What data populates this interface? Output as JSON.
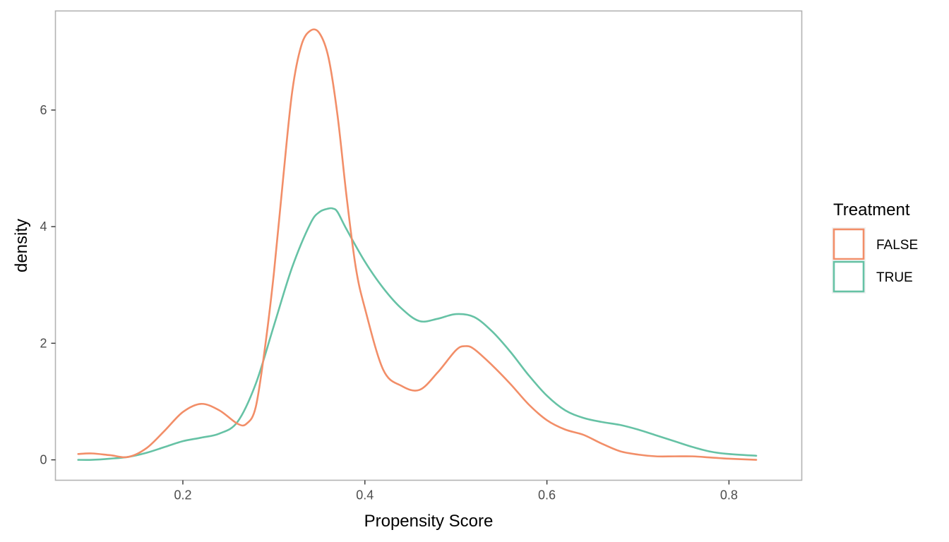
{
  "chart_data": {
    "type": "line",
    "xlabel": "Propensity Score",
    "ylabel": "density",
    "xlim": [
      0.06,
      0.88
    ],
    "ylim": [
      -0.35,
      7.7
    ],
    "x_ticks": [
      0.2,
      0.4,
      0.6,
      0.8
    ],
    "x_tick_labels": [
      "0.2",
      "0.4",
      "0.6",
      "0.8"
    ],
    "y_ticks": [
      0,
      2,
      4,
      6
    ],
    "y_tick_labels": [
      "0",
      "2",
      "4",
      "6"
    ],
    "grid": false,
    "legend": {
      "title": "Treatment",
      "position": "right"
    },
    "series": [
      {
        "name": "FALSE",
        "color": "#F28E68",
        "x": [
          0.085,
          0.1,
          0.12,
          0.14,
          0.16,
          0.18,
          0.2,
          0.22,
          0.24,
          0.26,
          0.27,
          0.28,
          0.29,
          0.3,
          0.31,
          0.32,
          0.33,
          0.34,
          0.35,
          0.36,
          0.37,
          0.38,
          0.39,
          0.4,
          0.42,
          0.44,
          0.46,
          0.48,
          0.5,
          0.51,
          0.52,
          0.54,
          0.56,
          0.58,
          0.6,
          0.62,
          0.64,
          0.66,
          0.68,
          0.7,
          0.72,
          0.74,
          0.76,
          0.78,
          0.8,
          0.83
        ],
        "y": [
          0.1,
          0.11,
          0.08,
          0.05,
          0.2,
          0.5,
          0.82,
          0.96,
          0.85,
          0.62,
          0.62,
          0.9,
          1.9,
          3.2,
          4.8,
          6.3,
          7.1,
          7.36,
          7.32,
          6.9,
          5.9,
          4.5,
          3.3,
          2.6,
          1.55,
          1.27,
          1.2,
          1.5,
          1.88,
          1.95,
          1.9,
          1.62,
          1.3,
          0.95,
          0.68,
          0.52,
          0.43,
          0.28,
          0.15,
          0.09,
          0.06,
          0.06,
          0.06,
          0.04,
          0.02,
          0.0
        ]
      },
      {
        "name": "TRUE",
        "color": "#66C2A5",
        "x": [
          0.085,
          0.1,
          0.12,
          0.14,
          0.16,
          0.18,
          0.2,
          0.22,
          0.24,
          0.26,
          0.28,
          0.3,
          0.32,
          0.34,
          0.35,
          0.36,
          0.365,
          0.37,
          0.38,
          0.4,
          0.42,
          0.44,
          0.46,
          0.48,
          0.5,
          0.52,
          0.54,
          0.56,
          0.58,
          0.6,
          0.62,
          0.64,
          0.66,
          0.68,
          0.7,
          0.72,
          0.74,
          0.76,
          0.78,
          0.8,
          0.83
        ],
        "y": [
          0.0,
          0.0,
          0.02,
          0.05,
          0.12,
          0.22,
          0.32,
          0.38,
          0.45,
          0.65,
          1.3,
          2.3,
          3.3,
          4.05,
          4.25,
          4.31,
          4.31,
          4.25,
          3.95,
          3.4,
          2.95,
          2.6,
          2.38,
          2.42,
          2.5,
          2.45,
          2.2,
          1.85,
          1.45,
          1.1,
          0.85,
          0.72,
          0.65,
          0.6,
          0.52,
          0.42,
          0.32,
          0.22,
          0.14,
          0.1,
          0.07
        ]
      }
    ]
  }
}
